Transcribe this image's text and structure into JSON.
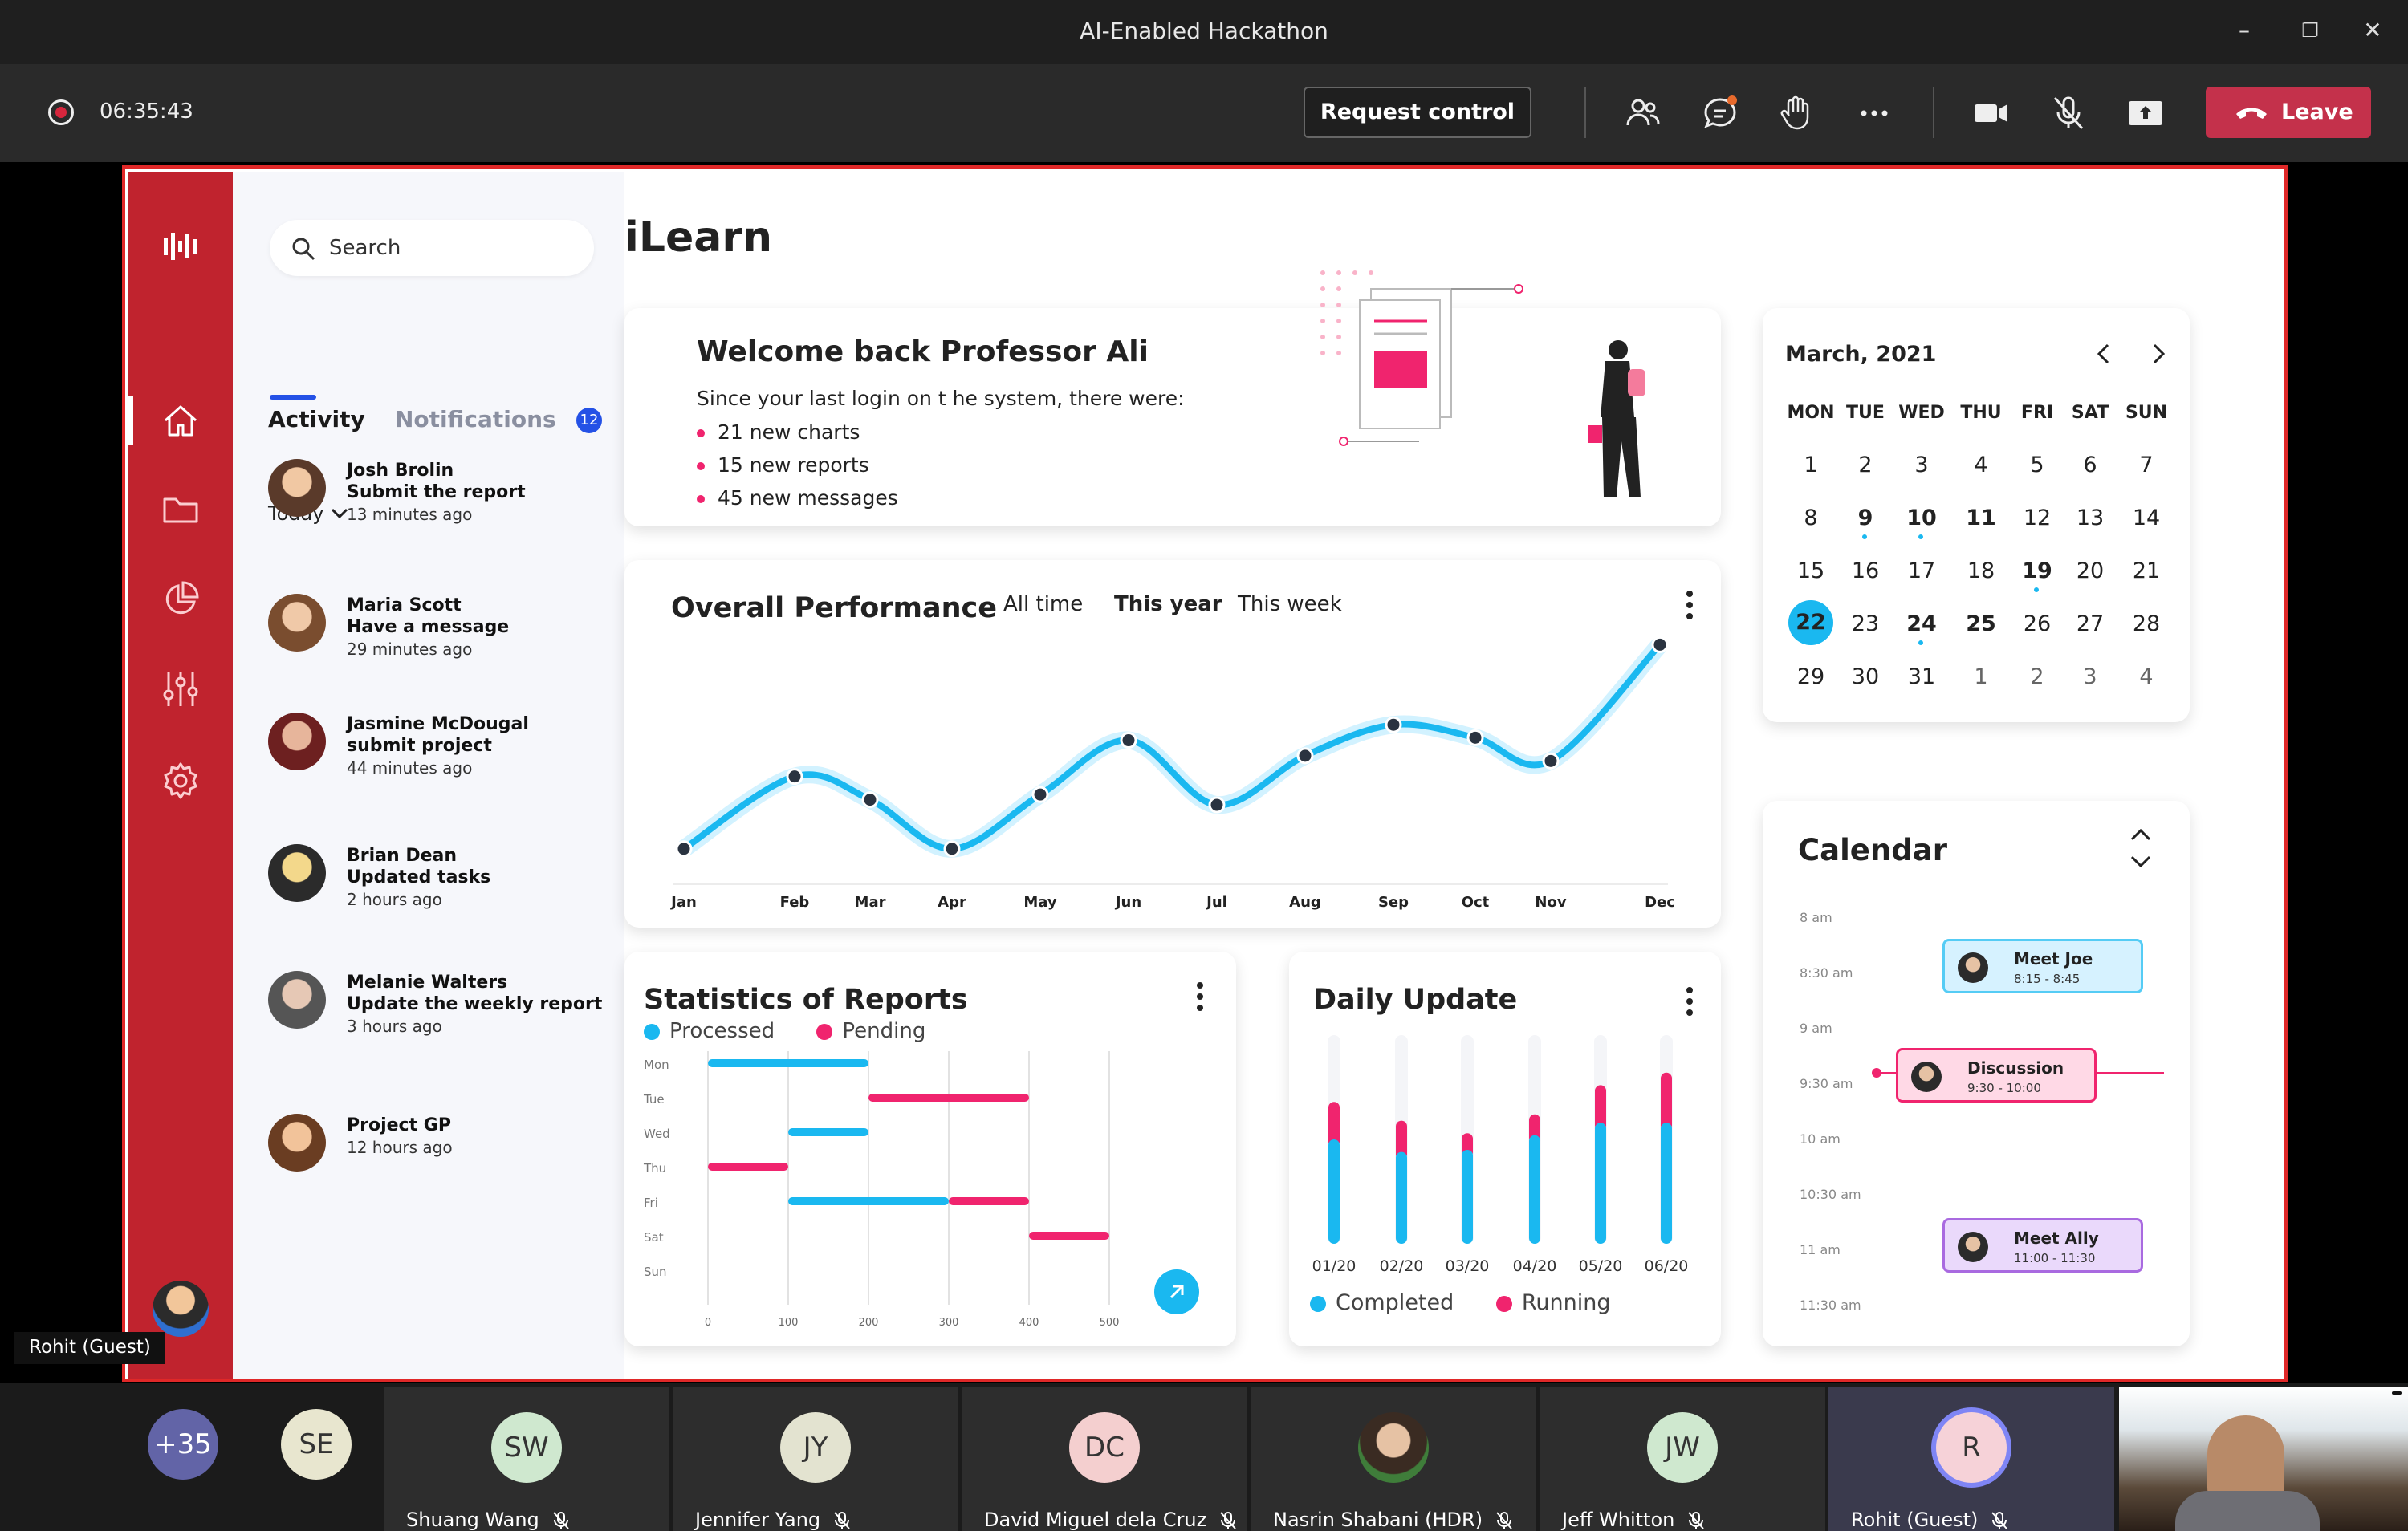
{
  "window": {
    "title": "AI-Enabled Hackathon"
  },
  "meeting": {
    "timer": "06:35:43",
    "request_control": "Request control",
    "leave": "Leave",
    "presenter_label": "Rohit (Guest)"
  },
  "app": {
    "title": "iLearn",
    "search_placeholder": "Search",
    "tabs": {
      "activity": "Activity",
      "notifications": "Notifications",
      "notif_count": "12"
    },
    "filter": "Today",
    "feed": [
      {
        "name": "Josh Brolin",
        "action": "Submit the report",
        "time": "13 minutes ago"
      },
      {
        "name": "Maria Scott",
        "action": "Have a message",
        "time": "29 minutes ago"
      },
      {
        "name": "Jasmine McDougal",
        "action": "submit project",
        "time": "44 minutes ago"
      },
      {
        "name": "Brian Dean",
        "action": "Updated tasks",
        "time": "2 hours ago"
      },
      {
        "name": "Melanie Walters",
        "action": "Update the weekly report",
        "time": "3 hours ago"
      },
      {
        "name": "Project GP",
        "action": "",
        "time": "12 hours ago"
      }
    ],
    "welcome": {
      "heading": "Welcome back Professor Ali",
      "intro": "Since your last login on t he system, there were:",
      "items": [
        "21 new charts",
        "15 new reports",
        "45 new messages"
      ]
    },
    "performance": {
      "title": "Overall Performance",
      "filters": [
        "All time",
        "This year",
        "This week"
      ]
    },
    "statistics": {
      "title": "Statistics of Reports",
      "legend": [
        "Processed",
        "Pending"
      ]
    },
    "daily": {
      "title": "Daily Update",
      "legend": [
        "Completed",
        "Running"
      ]
    },
    "month_calendar": {
      "month": "March, 2021",
      "weekdays": [
        "MON",
        "TUE",
        "WED",
        "THU",
        "FRI",
        "SAT",
        "SUN"
      ],
      "weeks": [
        [
          "1",
          "2",
          "3",
          "4",
          "5",
          "6",
          "7"
        ],
        [
          "8",
          "9",
          "10",
          "11",
          "12",
          "13",
          "14"
        ],
        [
          "15",
          "16",
          "17",
          "18",
          "19",
          "20",
          "21"
        ],
        [
          "22",
          "23",
          "24",
          "25",
          "26",
          "27",
          "28"
        ],
        [
          "29",
          "30",
          "31",
          "1",
          "2",
          "3",
          "4"
        ]
      ],
      "selected": "22"
    },
    "schedule": {
      "title": "Calendar",
      "times": [
        "8 am",
        "8:30 am",
        "9 am",
        "9:30 am",
        "10 am",
        "10:30 am",
        "11 am",
        "11:30 am"
      ],
      "events": [
        {
          "title": "Meet Joe",
          "time": "8:15 - 8:45"
        },
        {
          "title": "Discussion",
          "time": "9:30 - 10:00"
        },
        {
          "title": "Meet Ally",
          "time": "11:00 - 11:30"
        }
      ]
    }
  },
  "chart_data": [
    {
      "type": "line",
      "title": "Overall Performance",
      "categories": [
        "Jan",
        "Feb",
        "Mar",
        "Apr",
        "May",
        "Jun",
        "Jul",
        "Aug",
        "Sep",
        "Oct",
        "Nov",
        "Dec"
      ],
      "series": [
        {
          "name": "Performance",
          "values": [
            10,
            38,
            29,
            10,
            31,
            52,
            27,
            46,
            58,
            53,
            44,
            89
          ]
        }
      ],
      "ylim": [
        0,
        100
      ]
    },
    {
      "type": "bar",
      "title": "Statistics of Reports",
      "categories": [
        "Mon",
        "Tue",
        "Wed",
        "Thu",
        "Fri",
        "Sat",
        "Sun"
      ],
      "x_ticks": [
        "0",
        "100",
        "200",
        "300",
        "400",
        "500"
      ],
      "series": [
        {
          "name": "Processed",
          "ranges": [
            [
              0,
              200
            ],
            null,
            [
              100,
              200
            ],
            null,
            [
              100,
              300
            ],
            null,
            null
          ]
        },
        {
          "name": "Pending",
          "ranges": [
            null,
            [
              200,
              400
            ],
            null,
            [
              0,
              100
            ],
            [
              300,
              400
            ],
            [
              400,
              500
            ],
            null
          ]
        }
      ]
    },
    {
      "type": "bar",
      "title": "Daily Update",
      "categories": [
        "01/20",
        "02/20",
        "03/20",
        "04/20",
        "05/20",
        "06/20"
      ],
      "series": [
        {
          "name": "Completed",
          "values": [
            50,
            44,
            45,
            52,
            58,
            58
          ]
        },
        {
          "name": "Running",
          "values": [
            18,
            15,
            8,
            10,
            18,
            24
          ]
        }
      ],
      "ylim": [
        0,
        100
      ]
    }
  ],
  "participants": [
    {
      "initials": "+35",
      "name": ""
    },
    {
      "initials": "SE",
      "name": ""
    },
    {
      "initials": "SW",
      "name": "Shuang Wang"
    },
    {
      "initials": "JY",
      "name": "Jennifer Yang"
    },
    {
      "initials": "DC",
      "name": "David Miguel dela Cruz"
    },
    {
      "initials": "",
      "name": "Nasrin Shabani (HDR)"
    },
    {
      "initials": "JW",
      "name": "Jeff Whitton"
    },
    {
      "initials": "R",
      "name": "Rohit (Guest)"
    }
  ],
  "colors": {
    "accent_red": "#c0232e",
    "cyan": "#1ab8f0",
    "pink": "#f0246e",
    "leave": "#c4314b"
  }
}
